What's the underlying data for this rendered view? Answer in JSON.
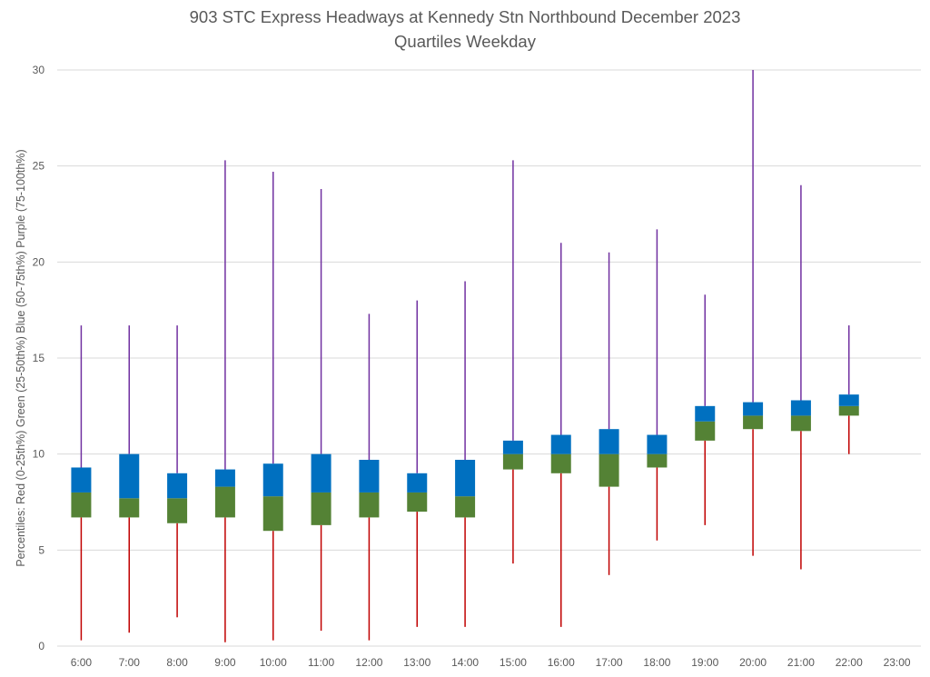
{
  "chart_data": {
    "type": "box",
    "title": "903 STC Express Headways at Kennedy Stn Northbound December 2023",
    "subtitle": "Quartiles Weekday",
    "ylabel": "Percentiles:  Red (0-25th%)  Green (25-50th%)  Blue (50-75th%)  Purple (75-100th%)",
    "xlabel": "",
    "ylim": [
      0,
      30
    ],
    "yticks": [
      0,
      5,
      10,
      15,
      20,
      25,
      30
    ],
    "grid": true,
    "legend": "none",
    "categories": [
      "6:00",
      "7:00",
      "8:00",
      "9:00",
      "10:00",
      "11:00",
      "12:00",
      "13:00",
      "14:00",
      "15:00",
      "16:00",
      "17:00",
      "18:00",
      "19:00",
      "20:00",
      "21:00",
      "22:00",
      "23:00"
    ],
    "series": [
      {
        "name": "Red (0-25th%)",
        "stat": "min",
        "values": [
          0.3,
          0.7,
          1.5,
          0.2,
          0.3,
          0.8,
          0.3,
          1.0,
          1.0,
          4.3,
          1.0,
          3.7,
          5.5,
          6.3,
          4.7,
          4.0,
          10.0,
          null
        ]
      },
      {
        "name": "Green (25-50th%)",
        "stat": "q1",
        "values": [
          6.7,
          6.7,
          6.4,
          6.7,
          6.0,
          6.3,
          6.7,
          7.0,
          6.7,
          9.2,
          9.0,
          8.3,
          9.3,
          10.7,
          11.3,
          11.2,
          12.0,
          null
        ]
      },
      {
        "name": "Blue (50-75th%)",
        "stat": "median",
        "values": [
          8.0,
          7.7,
          7.7,
          8.3,
          7.8,
          8.0,
          8.0,
          8.0,
          7.8,
          10.0,
          10.0,
          10.0,
          10.0,
          11.7,
          12.0,
          12.0,
          12.5,
          null
        ]
      },
      {
        "name": "Purple (75-100th%)",
        "stat": "q3",
        "values": [
          9.3,
          10.0,
          9.0,
          9.2,
          9.5,
          10.0,
          9.7,
          9.0,
          9.7,
          10.7,
          11.0,
          11.3,
          11.0,
          12.5,
          12.7,
          12.8,
          13.1,
          null
        ]
      },
      {
        "name": "",
        "stat": "max",
        "values": [
          16.7,
          16.7,
          16.7,
          25.3,
          24.7,
          23.8,
          17.3,
          18.0,
          19.0,
          25.3,
          21.0,
          20.5,
          21.7,
          18.3,
          30.0,
          24.0,
          16.7,
          null
        ]
      }
    ],
    "colors": {
      "lower_whisker": "#c00000",
      "lower_box": "#548235",
      "upper_box": "#0070c0",
      "upper_whisker": "#7030a0",
      "gridline": "#d9d9d9",
      "axis_line": "#d9d9d9",
      "text": "#595959"
    }
  }
}
